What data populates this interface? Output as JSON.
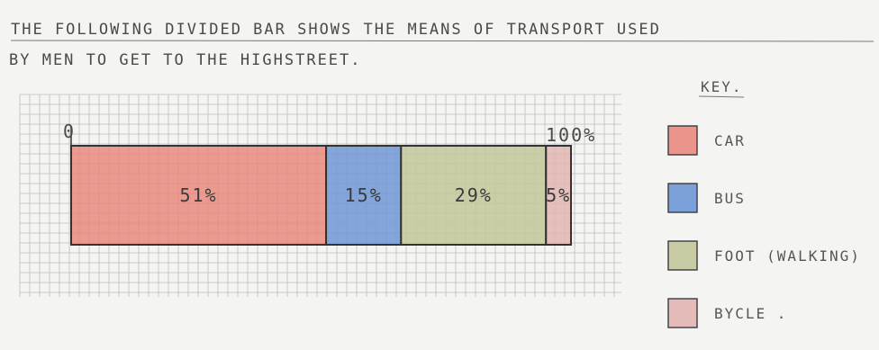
{
  "title_line1": "THE FOLLOWING DIVIDED BAR SHOWS THE MEANS OF TRANSPORT USED",
  "title_line2": "BY MEN TO GET TO THE HIGHSTREET.",
  "key_heading": "KEY.",
  "chart_data": {
    "type": "bar",
    "subtype": "divided-bar",
    "scale_min_label": "0",
    "scale_max_label": "100%",
    "segments": [
      {
        "category": "CAR",
        "value": 51,
        "label": "51%",
        "color": "#e98a7f"
      },
      {
        "category": "BUS",
        "value": 15,
        "label": "15%",
        "color": "#6f97d6"
      },
      {
        "category": "FOOT (WALKING)",
        "value": 29,
        "label": "29%",
        "color": "#c3c69a"
      },
      {
        "category": "BYCLE",
        "value": 5,
        "label": "5%",
        "color": "#e2b5b1"
      }
    ],
    "key": [
      {
        "label": "CAR",
        "color": "#e98a7f"
      },
      {
        "label": "BUS",
        "color": "#6f97d6"
      },
      {
        "label": "FOOT (WALKING)",
        "color": "#c3c69a"
      },
      {
        "label": "BYCLE .",
        "color": "#e2b5b1"
      }
    ],
    "grid": true
  }
}
